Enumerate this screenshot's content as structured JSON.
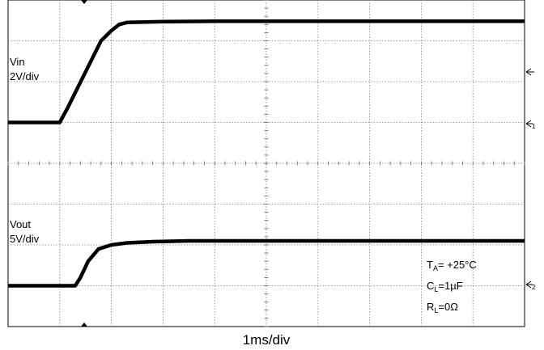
{
  "title": "",
  "channels": [
    {
      "name": "Vin",
      "scale": "2V/div"
    },
    {
      "name": "Vout",
      "scale": "5V/div"
    }
  ],
  "timebase": "1ms/div",
  "conditions": [
    {
      "symbol": "T",
      "sub": "A",
      "value": "= +25°C"
    },
    {
      "symbol": "C",
      "sub": "L",
      "value": "=1µF"
    },
    {
      "symbol": "R",
      "sub": "L",
      "value": "=0Ω"
    }
  ],
  "channel_markers": [
    "1",
    "2"
  ],
  "chart_data": {
    "type": "line",
    "x_unit": "ms",
    "x_range": [
      0,
      10
    ],
    "y_unit": "div",
    "y_range": [
      -4,
      4
    ],
    "grid": true,
    "series": [
      {
        "name": "Vin",
        "x": [
          0,
          1.0,
          1.15,
          1.8,
          2.0,
          2.15,
          2.3,
          3.0,
          4.0,
          10
        ],
        "y": [
          1.0,
          1.0,
          1.35,
          3.0,
          3.25,
          3.4,
          3.45,
          3.47,
          3.48,
          3.48
        ]
      },
      {
        "name": "Vout",
        "x": [
          0,
          1.3,
          1.4,
          1.55,
          1.75,
          2.0,
          2.3,
          2.8,
          3.5,
          10
        ],
        "y": [
          -3.0,
          -3.0,
          -2.8,
          -2.4,
          -2.1,
          -2.0,
          -1.95,
          -1.92,
          -1.9,
          -1.9
        ]
      }
    ]
  }
}
